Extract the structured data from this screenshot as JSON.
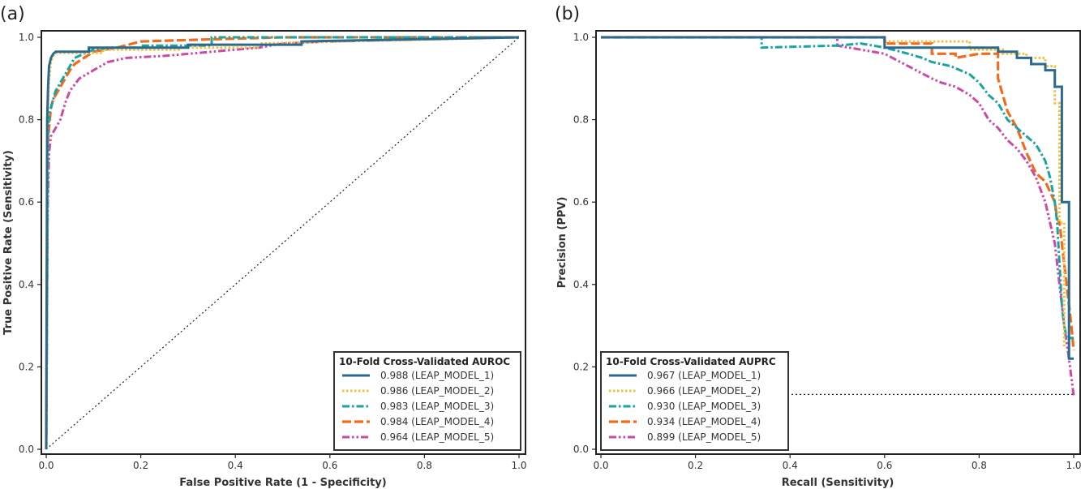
{
  "chart_data": [
    {
      "type": "line",
      "panel_tag": "(a)",
      "xlabel": "False Positive Rate (1 - Specificity)",
      "ylabel": "True Positive Rate (Sensitivity)",
      "xlim": [
        0,
        1
      ],
      "ylim": [
        0,
        1
      ],
      "xticks": [
        "0.0",
        "0.2",
        "0.4",
        "0.6",
        "0.8",
        "1.0"
      ],
      "yticks": [
        "0.0",
        "0.2",
        "0.4",
        "0.6",
        "0.8",
        "1.0"
      ],
      "legend_title": "10-Fold Cross-Validated AUROC",
      "legend_position": "lower-right",
      "reference_line": {
        "x": [
          0,
          1
        ],
        "y": [
          0,
          1
        ],
        "style": "dotted",
        "color": "#222222"
      },
      "series": [
        {
          "name": "0.988 (LEAP_MODEL_1)",
          "color": "#2b6a8f",
          "style": "solid",
          "x": [
            0,
            0.002,
            0.004,
            0.006,
            0.01,
            0.015,
            0.02,
            0.09,
            0.09,
            0.3,
            0.3,
            0.54,
            0.54,
            1.0
          ],
          "y": [
            0,
            0.8,
            0.88,
            0.93,
            0.95,
            0.96,
            0.965,
            0.965,
            0.975,
            0.975,
            0.982,
            0.982,
            0.99,
            1.0
          ]
        },
        {
          "name": "0.986 (LEAP_MODEL_2)",
          "color": "#f5c040",
          "style": "dotted",
          "x": [
            0,
            0.003,
            0.006,
            0.01,
            0.015,
            0.02,
            0.12,
            0.12,
            0.28,
            0.28,
            0.45,
            0.45,
            1.0
          ],
          "y": [
            0,
            0.82,
            0.9,
            0.94,
            0.955,
            0.962,
            0.962,
            0.97,
            0.97,
            0.975,
            0.975,
            0.985,
            1.0
          ]
        },
        {
          "name": "0.983 (LEAP_MODEL_3)",
          "color": "#1aa3a3",
          "style": "dashdot",
          "x": [
            0,
            0.004,
            0.008,
            0.015,
            0.02,
            0.03,
            0.04,
            0.05,
            0.06,
            0.07,
            0.08,
            0.1,
            0.14,
            0.2,
            0.2,
            0.35,
            0.35,
            1.0
          ],
          "y": [
            0,
            0.78,
            0.82,
            0.85,
            0.87,
            0.89,
            0.91,
            0.93,
            0.95,
            0.955,
            0.96,
            0.97,
            0.975,
            0.975,
            0.98,
            0.98,
            1.0,
            1.0
          ]
        },
        {
          "name": "0.984 (LEAP_MODEL_4)",
          "color": "#f26b1d",
          "style": "dashed",
          "x": [
            0,
            0.003,
            0.006,
            0.01,
            0.015,
            0.02,
            0.03,
            0.04,
            0.05,
            0.06,
            0.08,
            0.1,
            0.15,
            0.2,
            0.35,
            0.5,
            1.0
          ],
          "y": [
            0,
            0.74,
            0.78,
            0.83,
            0.85,
            0.86,
            0.88,
            0.9,
            0.92,
            0.935,
            0.95,
            0.965,
            0.975,
            0.99,
            0.995,
            1.0,
            1.0
          ]
        },
        {
          "name": "0.964 (LEAP_MODEL_5)",
          "color": "#cc4aa7",
          "style": "dashdotdot",
          "x": [
            0,
            0.003,
            0.006,
            0.01,
            0.02,
            0.03,
            0.04,
            0.05,
            0.07,
            0.1,
            0.13,
            0.17,
            0.25,
            0.35,
            0.45,
            0.5,
            0.6,
            0.8,
            1.0
          ],
          "y": [
            0,
            0.58,
            0.72,
            0.76,
            0.78,
            0.8,
            0.84,
            0.87,
            0.9,
            0.92,
            0.94,
            0.95,
            0.955,
            0.965,
            0.975,
            0.985,
            0.99,
            0.995,
            1.0
          ]
        }
      ]
    },
    {
      "type": "line",
      "panel_tag": "(b)",
      "xlabel": "Recall (Sensitivity)",
      "ylabel": "Precision (PPV)",
      "xlim": [
        0,
        1
      ],
      "ylim": [
        0,
        1
      ],
      "xticks": [
        "0.0",
        "0.2",
        "0.4",
        "0.6",
        "0.8",
        "1.0"
      ],
      "yticks": [
        "0.0",
        "0.2",
        "0.4",
        "0.6",
        "0.8",
        "1.0"
      ],
      "legend_title": "10-Fold Cross-Validated AUPRC",
      "legend_position": "lower-left",
      "reference_line": {
        "x": [
          0,
          1
        ],
        "y": [
          0.133,
          0.133
        ],
        "style": "dotted",
        "color": "#222222"
      },
      "series": [
        {
          "name": "0.967 (LEAP_MODEL_1)",
          "color": "#2b6a8f",
          "style": "solid",
          "x": [
            0,
            0.6,
            0.6,
            0.84,
            0.84,
            0.88,
            0.88,
            0.91,
            0.91,
            0.94,
            0.94,
            0.96,
            0.96,
            0.975,
            0.975,
            0.99,
            0.99,
            1.0
          ],
          "y": [
            1.0,
            1.0,
            0.975,
            0.975,
            0.965,
            0.965,
            0.95,
            0.95,
            0.935,
            0.935,
            0.92,
            0.92,
            0.88,
            0.88,
            0.6,
            0.6,
            0.22,
            0.22
          ]
        },
        {
          "name": "0.966 (LEAP_MODEL_2)",
          "color": "#f5c040",
          "style": "dotted",
          "x": [
            0,
            0.6,
            0.6,
            0.78,
            0.78,
            0.85,
            0.85,
            0.9,
            0.9,
            0.94,
            0.94,
            0.96,
            0.96,
            0.97,
            0.97,
            0.98,
            0.98
          ],
          "y": [
            1.0,
            1.0,
            0.99,
            0.99,
            0.97,
            0.97,
            0.96,
            0.96,
            0.95,
            0.95,
            0.93,
            0.93,
            0.84,
            0.84,
            0.55,
            0.55,
            0.25
          ]
        },
        {
          "name": "0.930 (LEAP_MODEL_3)",
          "color": "#1aa3a3",
          "style": "dashdot",
          "x": [
            0,
            0.34,
            0.34,
            0.5,
            0.55,
            0.6,
            0.65,
            0.68,
            0.7,
            0.72,
            0.74,
            0.76,
            0.78,
            0.8,
            0.82,
            0.84,
            0.86,
            0.88,
            0.9,
            0.92,
            0.94,
            0.95,
            0.96,
            0.965,
            0.97,
            0.975,
            0.98,
            0.985,
            1.0
          ],
          "y": [
            1.0,
            1.0,
            0.975,
            0.98,
            0.985,
            0.975,
            0.96,
            0.95,
            0.94,
            0.935,
            0.93,
            0.92,
            0.91,
            0.89,
            0.86,
            0.84,
            0.8,
            0.78,
            0.76,
            0.74,
            0.7,
            0.66,
            0.6,
            0.55,
            0.45,
            0.35,
            0.3,
            0.27,
            0.27
          ]
        },
        {
          "name": "0.934 (LEAP_MODEL_4)",
          "color": "#f26b1d",
          "style": "dashed",
          "x": [
            0,
            0.6,
            0.6,
            0.7,
            0.7,
            0.75,
            0.75,
            0.8,
            0.84,
            0.84,
            0.86,
            0.88,
            0.9,
            0.92,
            0.94,
            0.96,
            0.965,
            0.97,
            0.975,
            0.98,
            0.985,
            0.99,
            0.995,
            1.0
          ],
          "y": [
            1.0,
            1.0,
            0.985,
            0.985,
            0.96,
            0.96,
            0.95,
            0.96,
            0.96,
            0.9,
            0.82,
            0.78,
            0.72,
            0.67,
            0.65,
            0.6,
            0.56,
            0.55,
            0.5,
            0.45,
            0.4,
            0.35,
            0.3,
            0.24
          ]
        },
        {
          "name": "0.899 (LEAP_MODEL_5)",
          "color": "#cc4aa7",
          "style": "dashdotdot",
          "x": [
            0,
            0.5,
            0.5,
            0.6,
            0.65,
            0.7,
            0.72,
            0.75,
            0.78,
            0.8,
            0.82,
            0.84,
            0.86,
            0.88,
            0.9,
            0.92,
            0.94,
            0.95,
            0.96,
            0.97,
            0.98,
            0.99,
            1.0
          ],
          "y": [
            1.0,
            1.0,
            0.98,
            0.96,
            0.93,
            0.9,
            0.89,
            0.88,
            0.86,
            0.84,
            0.8,
            0.78,
            0.75,
            0.73,
            0.7,
            0.66,
            0.6,
            0.55,
            0.5,
            0.4,
            0.3,
            0.22,
            0.13
          ]
        }
      ]
    }
  ]
}
